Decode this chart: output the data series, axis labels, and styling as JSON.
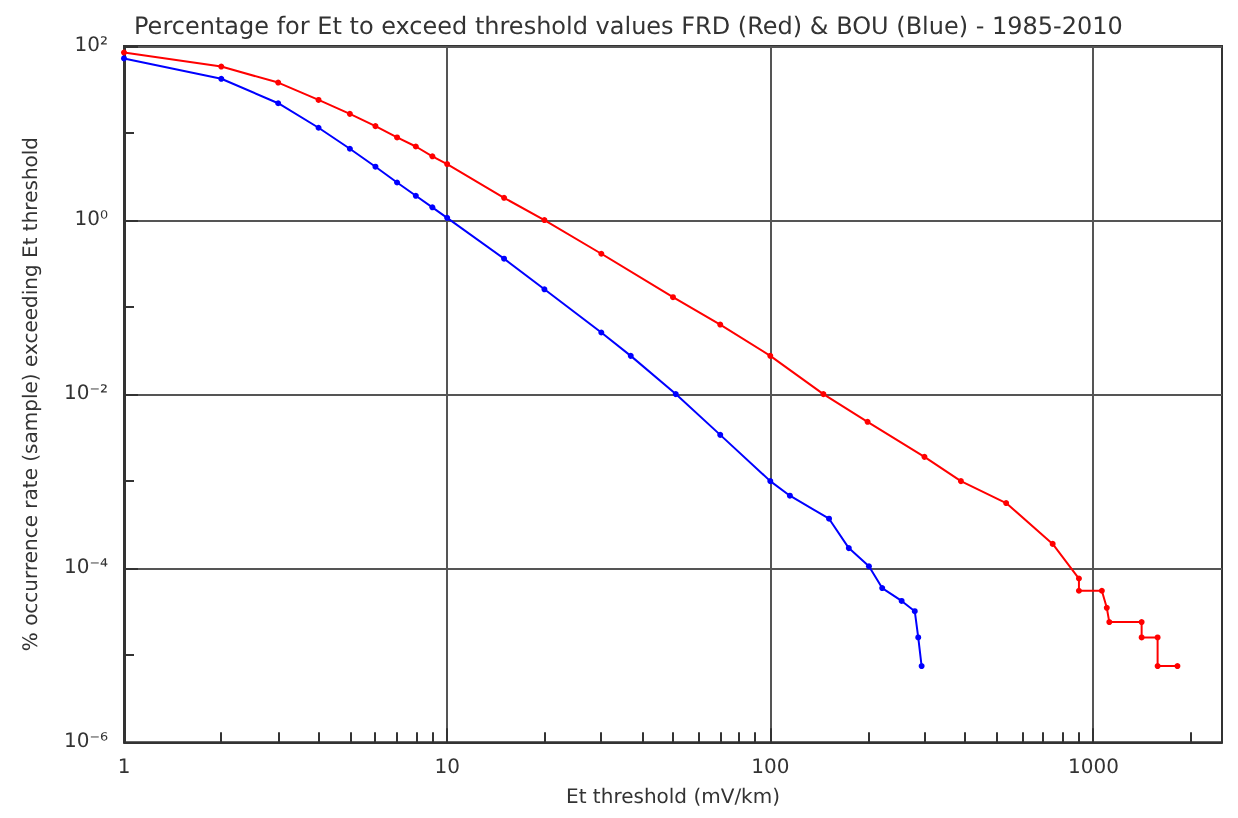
{
  "chart_data": {
    "type": "line",
    "title": "Percentage for Et to exceed threshold values FRD (Red) & BOU (Blue) - 1985-2010",
    "xlabel": "Et threshold (mV/km)",
    "ylabel": "% occurrence rate (sample) exceeding Et threshold",
    "log": "xy",
    "grid": true,
    "marker": "circle",
    "line_style": "solid",
    "xlim": [
      1,
      2500
    ],
    "ylim": [
      1e-06,
      100
    ],
    "xticks": [
      1,
      {
        "value": 2,
        "label": null
      },
      {
        "value": 3,
        "label": null
      },
      {
        "value": 4,
        "label": null
      },
      {
        "value": 5,
        "label": null
      },
      {
        "value": 6,
        "label": null
      },
      {
        "value": 7,
        "label": null
      },
      {
        "value": 8,
        "label": null
      },
      {
        "value": 9,
        "label": null
      },
      10,
      {
        "value": 20,
        "label": null
      },
      {
        "value": 30,
        "label": null
      },
      {
        "value": 40,
        "label": null
      },
      {
        "value": 50,
        "label": null
      },
      {
        "value": 60,
        "label": null
      },
      {
        "value": 70,
        "label": null
      },
      {
        "value": 80,
        "label": null
      },
      {
        "value": 90,
        "label": null
      },
      100,
      {
        "value": 200,
        "label": null
      },
      {
        "value": 300,
        "label": null
      },
      {
        "value": 400,
        "label": null
      },
      {
        "value": 500,
        "label": null
      },
      {
        "value": 600,
        "label": null
      },
      {
        "value": 700,
        "label": null
      },
      {
        "value": 800,
        "label": null
      },
      {
        "value": 900,
        "label": null
      },
      1000,
      {
        "value": 2000,
        "label": null
      }
    ],
    "yticks": [
      {
        "value": 100,
        "label": "10²"
      },
      {
        "value": 10,
        "label": null
      },
      {
        "value": 1,
        "label": "10⁰"
      },
      {
        "value": 0.1,
        "label": null
      },
      {
        "value": 0.01,
        "label": "10⁻²"
      },
      {
        "value": 0.001,
        "label": null
      },
      {
        "value": 0.0001,
        "label": "10⁻⁴"
      },
      {
        "value": 1e-05,
        "label": null
      },
      {
        "value": 1e-06,
        "label": "10⁻⁶"
      }
    ],
    "series": [
      {
        "color": "#ff0000",
        "x": [
          1,
          2,
          3,
          4,
          5,
          6,
          7,
          8,
          9,
          10,
          15,
          20,
          30,
          50,
          70,
          100,
          146,
          200,
          300,
          389,
          537,
          748,
          902,
          902,
          1062,
          1100,
          1120,
          1410,
          1410,
          1580,
          1580,
          1820
        ],
        "values": [
          84,
          58,
          38,
          24,
          16.6,
          12,
          8.9,
          7,
          5.4,
          4.4,
          1.8,
          1,
          0.41,
          0.13,
          0.063,
          0.0275,
          0.01,
          0.0048,
          0.0019,
          0.001,
          0.00056,
          0.00019,
          7.6e-05,
          5.5e-05,
          5.5e-05,
          3.5e-05,
          2.4e-05,
          2.4e-05,
          1.6e-05,
          1.6e-05,
          7.5e-06,
          7.5e-06
        ]
      },
      {
        "color": "#0000ff",
        "x": [
          1,
          2,
          3,
          4,
          5,
          6,
          7,
          8,
          9,
          10,
          15,
          20,
          30,
          37,
          51,
          70,
          100,
          115,
          152,
          175,
          202,
          222,
          255,
          280,
          287,
          294
        ],
        "values": [
          72,
          42,
          22,
          11.5,
          6.6,
          4.1,
          2.7,
          1.9,
          1.4,
          1.06,
          0.36,
          0.16,
          0.051,
          0.0275,
          0.01,
          0.0034,
          0.001,
          0.00068,
          0.00037,
          0.00017,
          0.000105,
          5.9e-05,
          4.2e-05,
          3.2e-05,
          1.6e-05,
          7.5e-06
        ]
      }
    ]
  }
}
